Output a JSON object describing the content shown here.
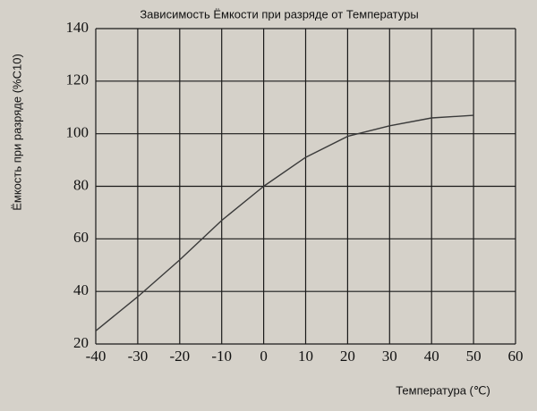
{
  "chart_data": {
    "type": "line",
    "title": "Зависимость Ёмкости при разряде от Температуры",
    "x_label": "Температура (℃)",
    "y_label": "Ёмкость при разряде (%C10)",
    "x": [
      -40,
      -30,
      -20,
      -10,
      0,
      10,
      20,
      30,
      40,
      50
    ],
    "values": [
      25,
      38,
      52,
      67,
      80,
      91,
      99,
      103,
      106,
      107
    ],
    "color": "#3a3a3a",
    "xlim": [
      -40,
      60
    ],
    "xticks": [
      -40,
      -30,
      -20,
      -10,
      0,
      10,
      20,
      30,
      40,
      50,
      60
    ],
    "ylim": [
      20,
      140
    ],
    "yticks": [
      20,
      40,
      60,
      80,
      100,
      120,
      140
    ],
    "grid": true
  }
}
